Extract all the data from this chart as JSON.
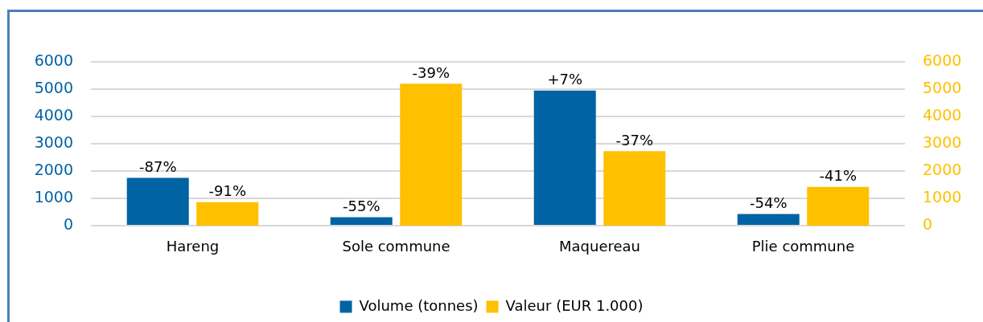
{
  "chart_data": {
    "type": "bar",
    "categories": [
      "Hareng",
      "Sole commune",
      "Maquereau",
      "Plie commune"
    ],
    "series": [
      {
        "name": "Volume (tonnes)",
        "color": "#0063a3",
        "values": [
          1750,
          310,
          4950,
          430
        ]
      },
      {
        "name": "Valeur (EUR 1.000)",
        "color": "#ffc000",
        "axis": "y2",
        "values": [
          860,
          5200,
          2730,
          1420
        ]
      }
    ],
    "annotations": [
      {
        "text": "-87%",
        "x": "Hareng",
        "y": 1750
      },
      {
        "text": "-91%",
        "x": "Hareng",
        "y": 860
      },
      {
        "text": "-55%",
        "x": "Sole commune",
        "y": 310
      },
      {
        "text": "-39%",
        "x": "Sole commune",
        "y": 5200
      },
      {
        "text": "+7%",
        "x": "Maquereau",
        "y": 4950
      },
      {
        "text": "-37%",
        "x": "Maquereau",
        "y": 2730
      },
      {
        "text": "-54%",
        "x": "Plie commune",
        "y": 430
      },
      {
        "text": "-41%",
        "x": "Plie commune",
        "y": 1420
      }
    ],
    "ylim": [
      0,
      6000
    ],
    "yticks": [
      0,
      1000,
      2000,
      3000,
      4000,
      5000,
      6000
    ],
    "y2lim": [
      0,
      6000
    ],
    "y2ticks": [
      0,
      1000,
      2000,
      3000,
      4000,
      5000,
      6000
    ],
    "grid": "y",
    "legend": "bottom"
  }
}
